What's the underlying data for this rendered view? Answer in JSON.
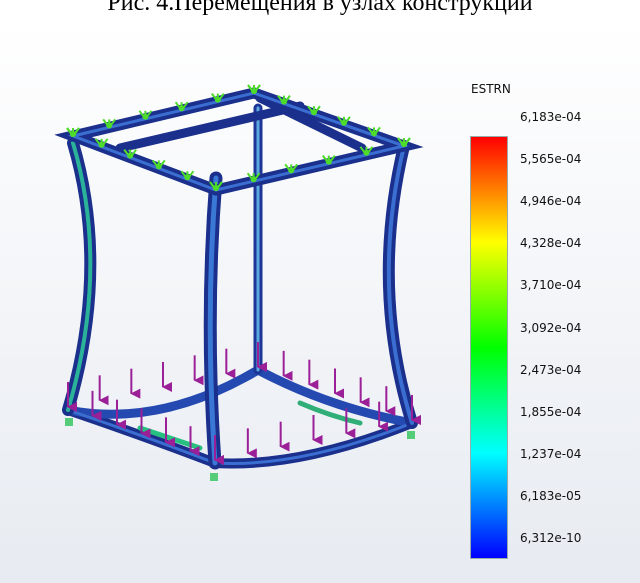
{
  "caption": "Рис. 4.Перемещения в узлах конструкции",
  "legend": {
    "title": "ESTRN",
    "ticks": [
      "6,183e-04",
      "5,565e-04",
      "4,946e-04",
      "4,328e-04",
      "3,710e-04",
      "3,092e-04",
      "2,473e-04",
      "1,855e-04",
      "1,237e-04",
      "6,183e-05",
      "6,312e-10"
    ]
  },
  "colors": {
    "bar_stops": [
      "#ff0000",
      "#ff8000",
      "#ffff00",
      "#80ff00",
      "#00ff00",
      "#00ff80",
      "#00ffff",
      "#0080ff",
      "#0000ff"
    ],
    "beam_dark": "#1b2f8c",
    "beam_light": "#3a6fd1",
    "fixture": "#4ddc2a",
    "load": "#9b1f97"
  }
}
